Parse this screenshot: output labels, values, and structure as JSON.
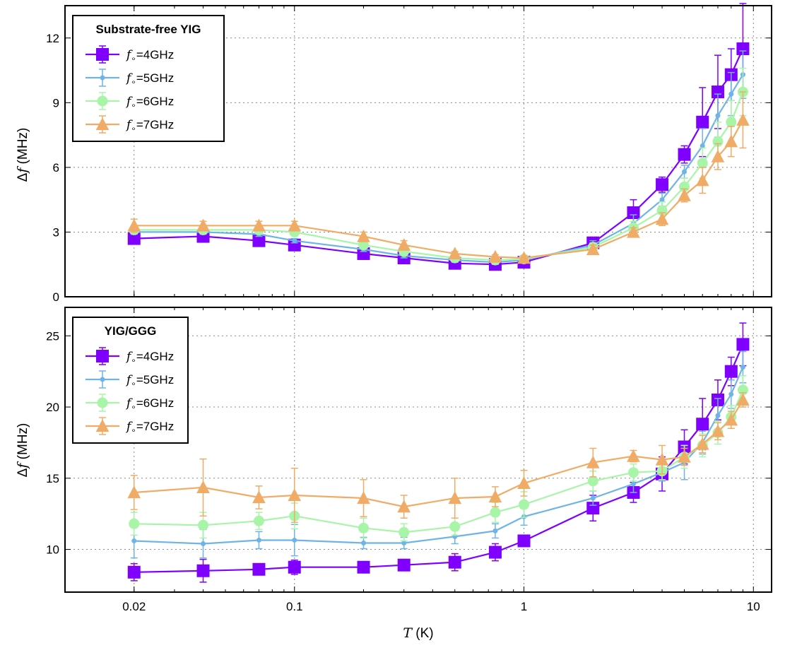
{
  "chart_data": [
    {
      "type": "line",
      "legend_title": "Substrate-free YIG",
      "legend_position": "top-left",
      "xlabel": "T (K)",
      "ylabel": "Δf (MHz)",
      "xscale": "log",
      "xlim": [
        0.01,
        12
      ],
      "ylim": [
        0,
        13.5
      ],
      "yticks": [
        0,
        3,
        6,
        9,
        12
      ],
      "grid": true,
      "x": [
        0.02,
        0.04,
        0.07,
        0.1,
        0.2,
        0.3,
        0.5,
        0.75,
        1,
        2,
        3,
        4,
        5,
        6,
        7,
        8,
        9
      ],
      "series": [
        {
          "name": "f∘=4GHz",
          "marker": "square",
          "color": "#7f00ff",
          "values": [
            2.7,
            2.8,
            2.6,
            2.4,
            2.0,
            1.8,
            1.55,
            1.5,
            1.6,
            2.5,
            3.9,
            5.2,
            6.6,
            8.1,
            9.5,
            10.3,
            11.5
          ],
          "errors": [
            0.15,
            0.15,
            0.15,
            0.15,
            0.15,
            0.15,
            0.1,
            0.1,
            0.1,
            0.2,
            0.6,
            0.35,
            0.4,
            1.6,
            1.7,
            1.2,
            2.1
          ]
        },
        {
          "name": "f∘=5GHz",
          "marker": "dot",
          "color": "#6eb4e6",
          "values": [
            3.0,
            3.0,
            2.9,
            2.6,
            2.2,
            1.9,
            1.7,
            1.6,
            1.7,
            2.4,
            3.4,
            4.5,
            5.8,
            7.0,
            8.4,
            9.4,
            10.3
          ],
          "errors": [
            0.1,
            0.1,
            0.1,
            0.1,
            0.1,
            0.1,
            0.1,
            0.1,
            0.1,
            0.2,
            0.4,
            0.3,
            0.3,
            0.8,
            1.0,
            1.0,
            1.1
          ]
        },
        {
          "name": "f∘=6GHz",
          "marker": "circle",
          "color": "#a8f5a8",
          "values": [
            3.1,
            3.1,
            3.1,
            3.0,
            2.4,
            2.1,
            1.8,
            1.7,
            1.75,
            2.3,
            3.2,
            4.0,
            5.1,
            6.2,
            7.2,
            8.1,
            9.5
          ],
          "errors": [
            0.1,
            0.1,
            0.1,
            0.1,
            0.1,
            0.1,
            0.1,
            0.1,
            0.1,
            0.2,
            0.3,
            0.4,
            0.4,
            0.7,
            0.9,
            1.0,
            1.1
          ]
        },
        {
          "name": "f∘=7GHz",
          "marker": "triangle",
          "color": "#f0ac66",
          "values": [
            3.3,
            3.3,
            3.3,
            3.3,
            2.8,
            2.4,
            2.0,
            1.85,
            1.8,
            2.2,
            3.0,
            3.6,
            4.7,
            5.4,
            6.5,
            7.2,
            8.2
          ],
          "errors": [
            0.3,
            0.2,
            0.2,
            0.2,
            0.2,
            0.2,
            0.1,
            0.1,
            0.1,
            0.2,
            0.2,
            0.3,
            0.3,
            0.6,
            0.6,
            0.7,
            1.3
          ]
        }
      ]
    },
    {
      "type": "line",
      "legend_title": "YIG/GGG",
      "legend_position": "top-left",
      "xlabel": "T (K)",
      "ylabel": "Δf (MHz)",
      "xscale": "log",
      "xlim": [
        0.01,
        12
      ],
      "ylim": [
        7,
        27
      ],
      "yticks": [
        10,
        15,
        20,
        25
      ],
      "xticks": [
        0.02,
        0.1,
        1,
        10
      ],
      "xticklabels": [
        "0.02",
        "0.1",
        "1",
        "10"
      ],
      "grid": true,
      "x": [
        0.02,
        0.04,
        0.07,
        0.1,
        0.2,
        0.3,
        0.5,
        0.75,
        1,
        2,
        3,
        4,
        5,
        6,
        7,
        8,
        9
      ],
      "series": [
        {
          "name": "f∘=4GHz",
          "marker": "square",
          "color": "#7f00ff",
          "values": [
            8.4,
            8.5,
            8.6,
            8.75,
            8.75,
            8.9,
            9.1,
            9.8,
            10.6,
            12.9,
            14.0,
            15.3,
            17.2,
            18.8,
            20.5,
            22.5,
            24.4
          ],
          "errors": [
            0.6,
            0.8,
            0.3,
            0.5,
            0.3,
            0.3,
            0.6,
            0.6,
            0.2,
            0.9,
            0.7,
            1.2,
            1.2,
            1.8,
            1.4,
            1.0,
            1.5
          ]
        },
        {
          "name": "f∘=5GHz",
          "marker": "dot",
          "color": "#6eb4e6",
          "values": [
            10.6,
            10.4,
            10.65,
            10.65,
            10.45,
            10.45,
            10.9,
            11.3,
            12.3,
            13.6,
            14.6,
            15.4,
            16.1,
            17.5,
            19.4,
            20.9,
            22.8
          ],
          "errors": [
            1.2,
            1.0,
            0.6,
            1.1,
            0.4,
            0.4,
            0.5,
            0.5,
            0.6,
            0.5,
            0.6,
            0.6,
            1.2,
            0.8,
            1.2,
            1.0,
            1.1
          ]
        },
        {
          "name": "f∘=6GHz",
          "marker": "circle",
          "color": "#a8f5a8",
          "values": [
            11.8,
            11.7,
            12.0,
            12.35,
            11.5,
            11.2,
            11.6,
            12.6,
            13.15,
            14.8,
            15.4,
            15.5,
            16.5,
            17.3,
            18.2,
            19.3,
            21.2
          ],
          "errors": [
            0.8,
            0.9,
            0.6,
            0.9,
            0.7,
            0.6,
            0.6,
            0.7,
            0.9,
            0.7,
            0.6,
            0.6,
            0.8,
            0.8,
            0.8,
            0.8,
            1.0
          ]
        },
        {
          "name": "f∘=7GHz",
          "marker": "triangle",
          "color": "#f0ac66",
          "values": [
            14.0,
            14.35,
            13.65,
            13.8,
            13.6,
            13.0,
            13.6,
            13.7,
            14.65,
            16.1,
            16.55,
            16.3,
            16.5,
            17.4,
            18.3,
            19.1,
            20.5
          ],
          "errors": [
            1.2,
            2.0,
            0.8,
            1.9,
            1.3,
            0.8,
            1.4,
            0.7,
            0.9,
            1.0,
            0.4,
            1.0,
            0.6,
            0.6,
            0.6,
            0.6,
            0.5
          ]
        }
      ]
    }
  ]
}
